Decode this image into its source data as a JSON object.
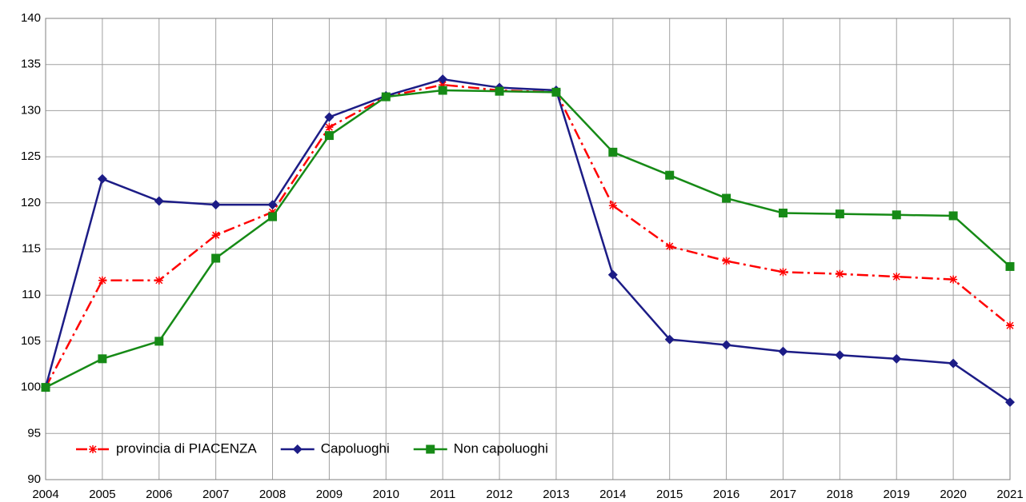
{
  "chart_data": {
    "type": "line",
    "categories": [
      "2004",
      "2005",
      "2006",
      "2007",
      "2008",
      "2009",
      "2010",
      "2011",
      "2012",
      "2013",
      "2014",
      "2015",
      "2016",
      "2017",
      "2018",
      "2019",
      "2020",
      "2021"
    ],
    "series": [
      {
        "name": "provincia di PIACENZA",
        "color": "#ff0000",
        "marker": "asterisk",
        "dash": "dashdot",
        "values": [
          100,
          111.6,
          111.6,
          116.5,
          119,
          128.2,
          131.5,
          132.8,
          132.2,
          132,
          119.7,
          115.3,
          113.7,
          112.5,
          112.3,
          112,
          111.7,
          106.7
        ]
      },
      {
        "name": "Capoluoghi",
        "color": "#1c1c86",
        "marker": "diamond",
        "dash": "solid",
        "values": [
          100,
          122.6,
          120.2,
          119.8,
          119.8,
          129.3,
          131.6,
          133.4,
          132.5,
          132.2,
          112.2,
          105.2,
          104.6,
          103.9,
          103.5,
          103.1,
          102.6,
          98.4
        ]
      },
      {
        "name": "Non capoluoghi",
        "color": "#168a16",
        "marker": "square",
        "dash": "solid",
        "values": [
          100,
          103.1,
          105,
          114,
          118.5,
          127.3,
          131.5,
          132.2,
          132.1,
          132,
          125.5,
          123,
          120.5,
          118.9,
          118.8,
          118.7,
          118.6,
          113.1
        ]
      }
    ],
    "ylim": [
      90,
      140
    ],
    "yticks": [
      90,
      95,
      100,
      105,
      110,
      115,
      120,
      125,
      130,
      135,
      140
    ],
    "grid": true,
    "legend": "lower left"
  }
}
